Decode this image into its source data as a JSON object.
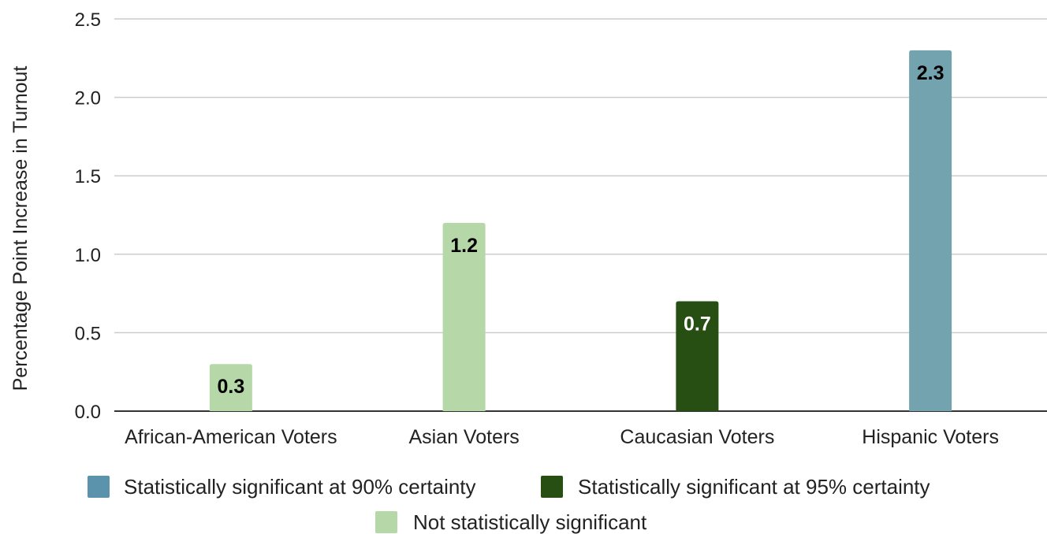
{
  "chart_data": {
    "type": "bar",
    "title": "",
    "xlabel": "",
    "ylabel": "Percentage Point Increase in Turnout",
    "ylim": [
      0,
      2.5
    ],
    "yticks": [
      "0.0",
      "0.5",
      "1.0",
      "1.5",
      "2.0",
      "2.5"
    ],
    "grid": true,
    "legend_position": "bottom",
    "categories": [
      "African-American Voters",
      "Asian Voters",
      "Caucasian Voters",
      "Hispanic Voters"
    ],
    "values": [
      0.3,
      1.2,
      0.7,
      2.3
    ],
    "data_labels": [
      "0.3",
      "1.2",
      "0.7",
      "2.3"
    ],
    "bar_groups": [
      "not_significant",
      "not_significant",
      "sig_95",
      "sig_90"
    ],
    "legend": [
      {
        "key": "sig_90",
        "label": "Statistically significant at 90% certainty",
        "color": "#5b93ad",
        "bar_color": "#74a3b0",
        "label_color": "#000000"
      },
      {
        "key": "sig_95",
        "label": "Statistically significant at 95% certainty",
        "color": "#274e13",
        "bar_color": "#274e13",
        "label_color": "#ffffff"
      },
      {
        "key": "not_significant",
        "label": "Not statistically significant",
        "color": "#b6d7a8",
        "bar_color": "#b6d7a8",
        "label_color": "#000000"
      }
    ]
  }
}
